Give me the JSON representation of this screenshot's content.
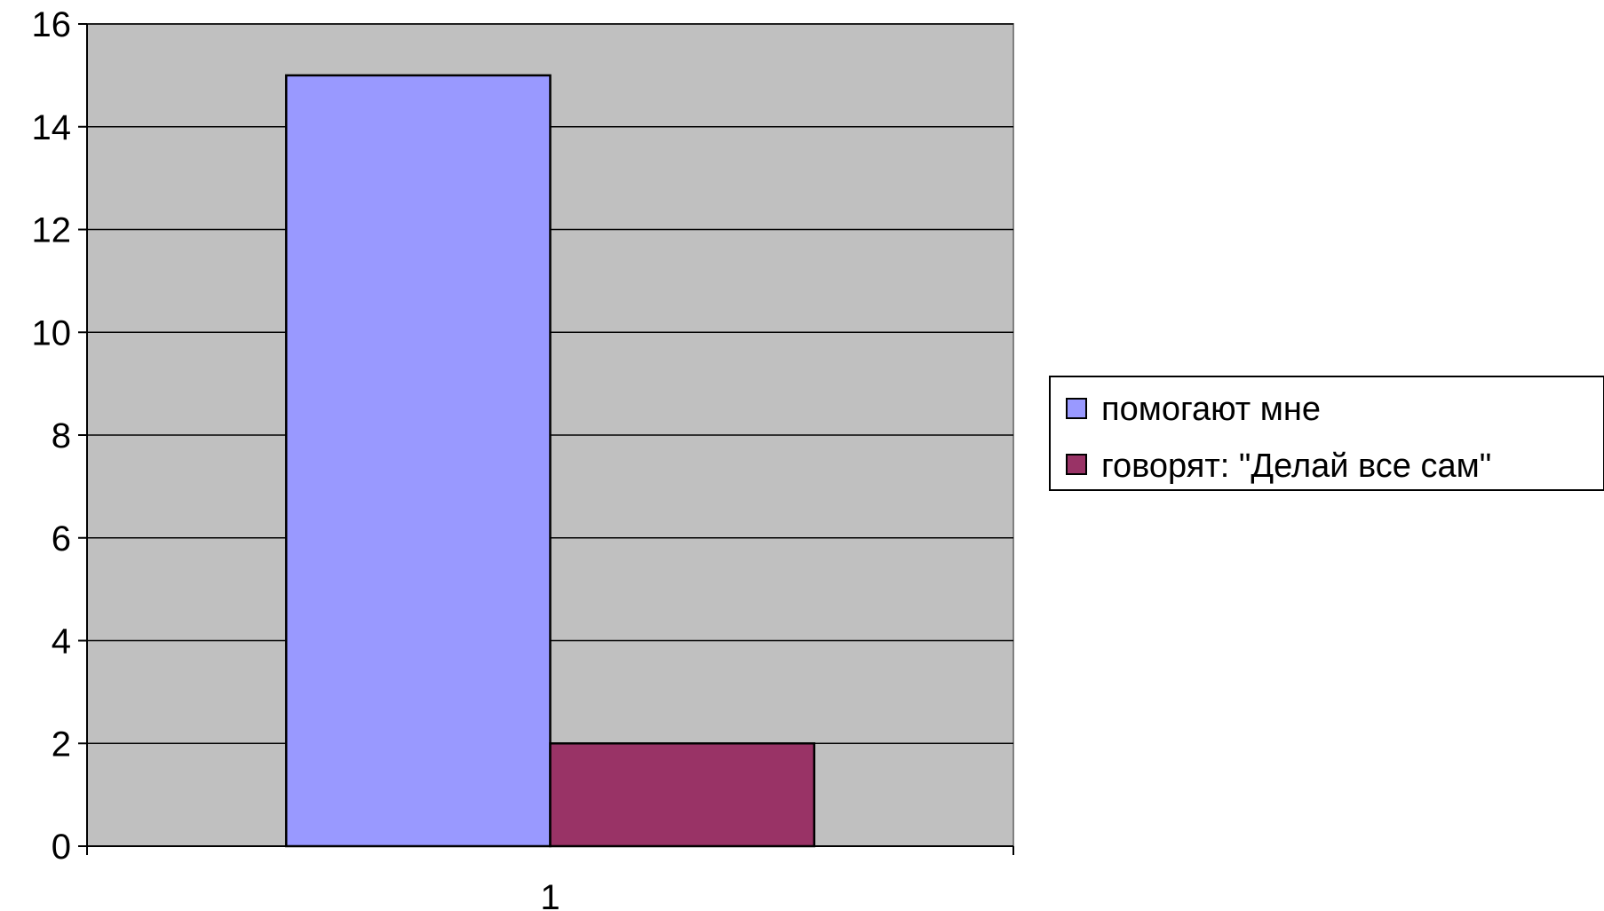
{
  "chart_data": {
    "type": "bar",
    "title": "",
    "xlabel": "",
    "ylabel": "",
    "categories": [
      "1"
    ],
    "ylim": [
      0,
      16
    ],
    "yticks": [
      0,
      2,
      4,
      6,
      8,
      10,
      12,
      14,
      16
    ],
    "grid": true,
    "legend_position": "right",
    "plot_background": "#c0c0c0",
    "series": [
      {
        "name": "помогают мне",
        "values": [
          15
        ],
        "color": "#9999ff"
      },
      {
        "name": "говорят: \"Делай все сам\"",
        "values": [
          2
        ],
        "color": "#993366"
      }
    ]
  }
}
